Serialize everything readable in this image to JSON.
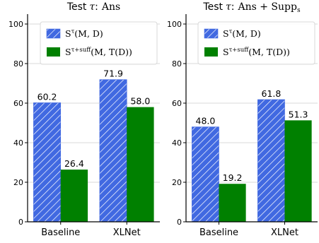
{
  "colors": {
    "series_a": "#4169e1",
    "series_b": "#008000",
    "grid": "#cccccc",
    "axis": "#000000"
  },
  "chart_data": [
    {
      "type": "bar",
      "title": {
        "prefix": "Test",
        "var": "τ",
        "colon": ":",
        "formula": "Ans"
      },
      "categories": [
        "Baseline",
        "XLNet"
      ],
      "ylim": [
        0,
        105
      ],
      "yticks": [
        0,
        20,
        40,
        60,
        80,
        100
      ],
      "grid": "horizontal",
      "legend_placement": "top-right",
      "series": [
        {
          "name": "S^τ(M, D)",
          "legend": {
            "base": "S",
            "sup": "τ",
            "args": "(M, D)"
          },
          "values": [
            60.2,
            71.9
          ],
          "labels": [
            "60.2",
            "71.9"
          ],
          "color": "#4169e1",
          "hatch": "diagonal"
        },
        {
          "name": "S^τ+suff(M, T(D))",
          "legend": {
            "base": "S",
            "sup": "τ+suff",
            "args": "(M, T(D))"
          },
          "values": [
            26.4,
            58.0
          ],
          "labels": [
            "26.4",
            "58.0"
          ],
          "color": "#008000",
          "hatch": "none"
        }
      ]
    },
    {
      "type": "bar",
      "title": {
        "prefix": "Test",
        "var": "τ",
        "colon": ":",
        "formula": "Ans + Supp",
        "sub": "s"
      },
      "categories": [
        "Baseline",
        "XLNet"
      ],
      "ylim": [
        0,
        105
      ],
      "yticks": [
        0,
        20,
        40,
        60,
        80,
        100
      ],
      "grid": "horizontal",
      "legend_placement": "top-right",
      "series": [
        {
          "name": "S^τ(M, D)",
          "legend": {
            "base": "S",
            "sup": "τ",
            "args": "(M, D)"
          },
          "values": [
            48.0,
            61.8
          ],
          "labels": [
            "48.0",
            "61.8"
          ],
          "color": "#4169e1",
          "hatch": "diagonal"
        },
        {
          "name": "S^τ+suff(M, T(D))",
          "legend": {
            "base": "S",
            "sup": "τ+suff",
            "args": "(M, T(D))"
          },
          "values": [
            19.2,
            51.3
          ],
          "labels": [
            "19.2",
            "51.3"
          ],
          "color": "#008000",
          "hatch": "none"
        }
      ]
    }
  ]
}
